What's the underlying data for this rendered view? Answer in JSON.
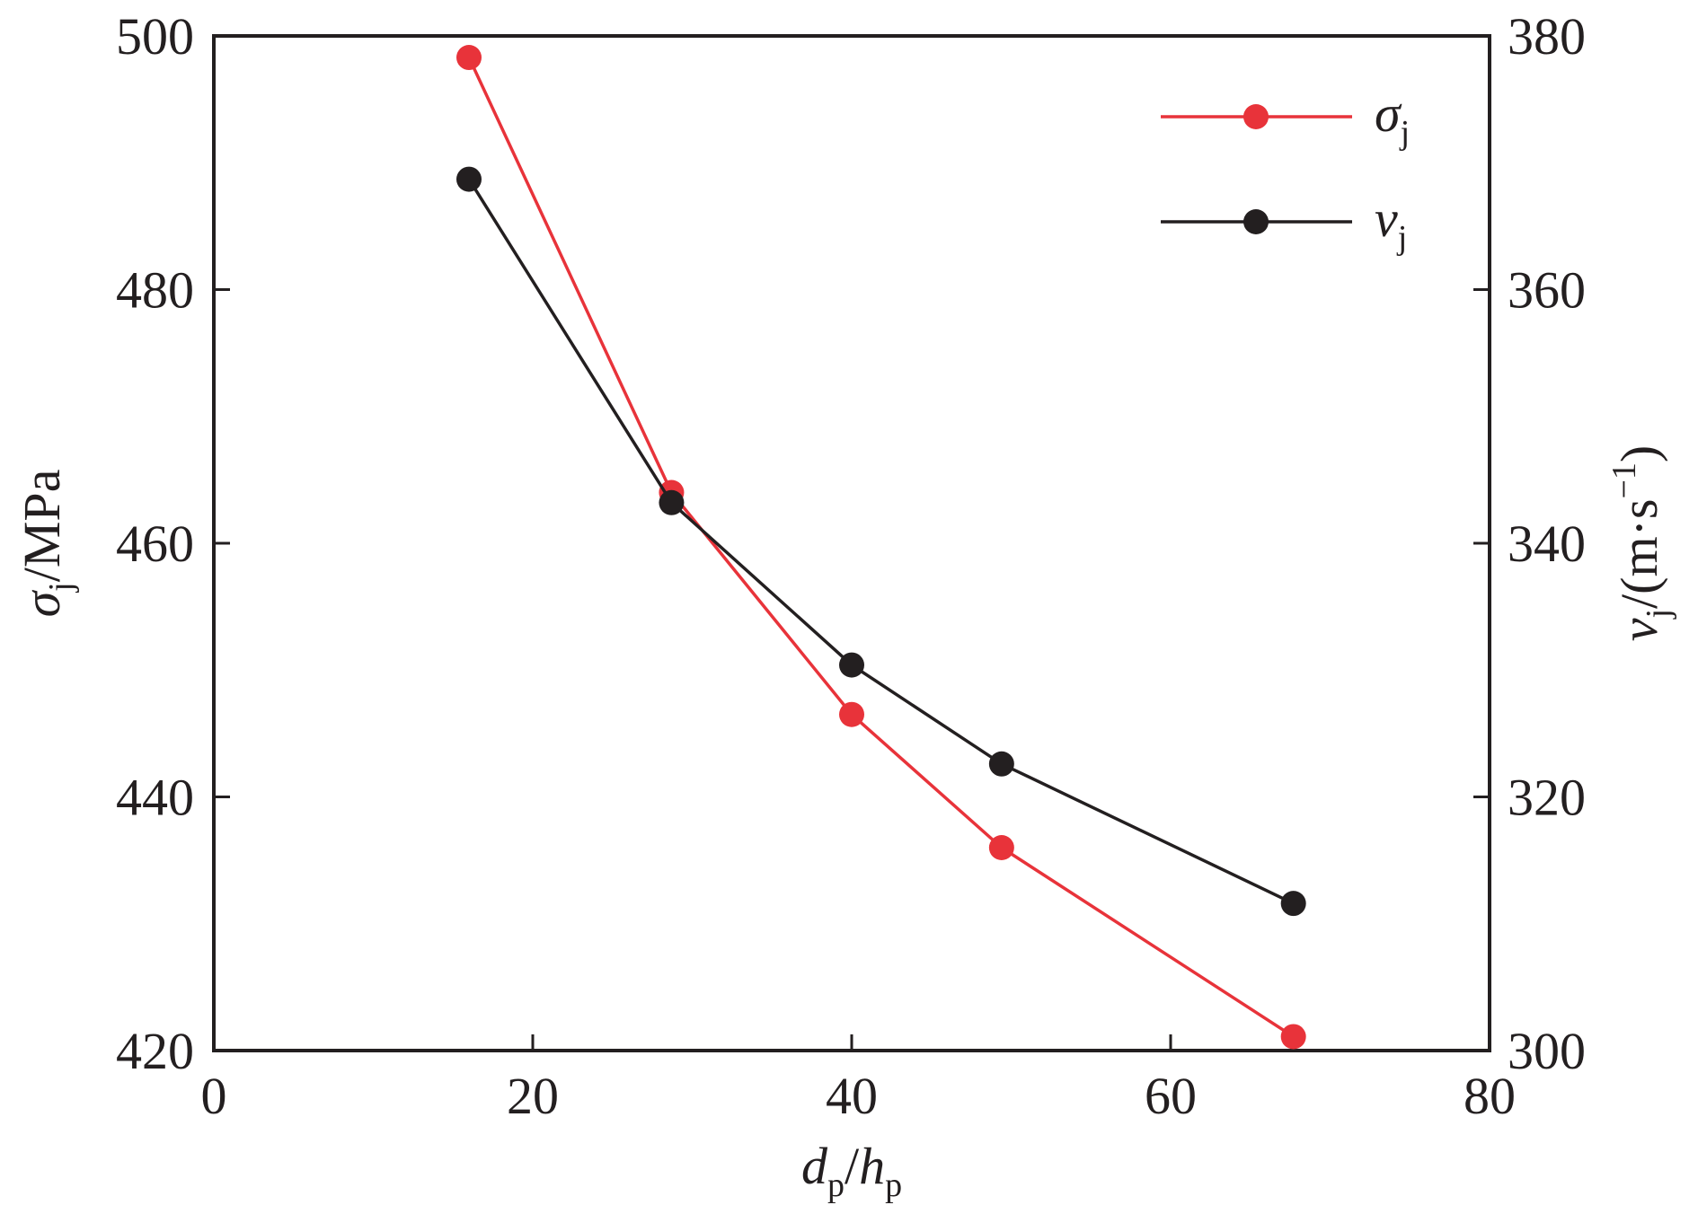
{
  "chart_data": {
    "type": "line",
    "x": [
      16,
      28.7,
      40,
      49.4,
      67.7
    ],
    "xlabel": {
      "d": "d",
      "d_sub": "p",
      "slash": "/",
      "h": "h",
      "h_sub": "p"
    },
    "xlim": [
      0,
      80
    ],
    "xticks": [
      0,
      20,
      40,
      60,
      80
    ],
    "ylabel_left": {
      "sym": "σ",
      "sub": "j",
      "unit": "/MPa"
    },
    "ylim_left": [
      420,
      500
    ],
    "yticks_left": [
      420,
      440,
      460,
      480,
      500
    ],
    "ylabel_right": {
      "sym": "v",
      "sub": "j",
      "unit_open": "/(m·s",
      "exp": "−1",
      "unit_close": ")"
    },
    "ylim_right": [
      300,
      380
    ],
    "yticks_right": [
      300,
      320,
      340,
      360,
      380
    ],
    "series": [
      {
        "name": "σ",
        "name_sub": "j",
        "axis": "left",
        "color": "#e8333a",
        "values": [
          498.3,
          464.0,
          446.5,
          436.0,
          421.1
        ]
      },
      {
        "name": "v",
        "name_sub": "j",
        "axis": "right",
        "color": "#231f20",
        "values": [
          368.7,
          343.2,
          330.4,
          322.6,
          311.6
        ]
      }
    ],
    "legend": "top-right",
    "grid": false
  }
}
